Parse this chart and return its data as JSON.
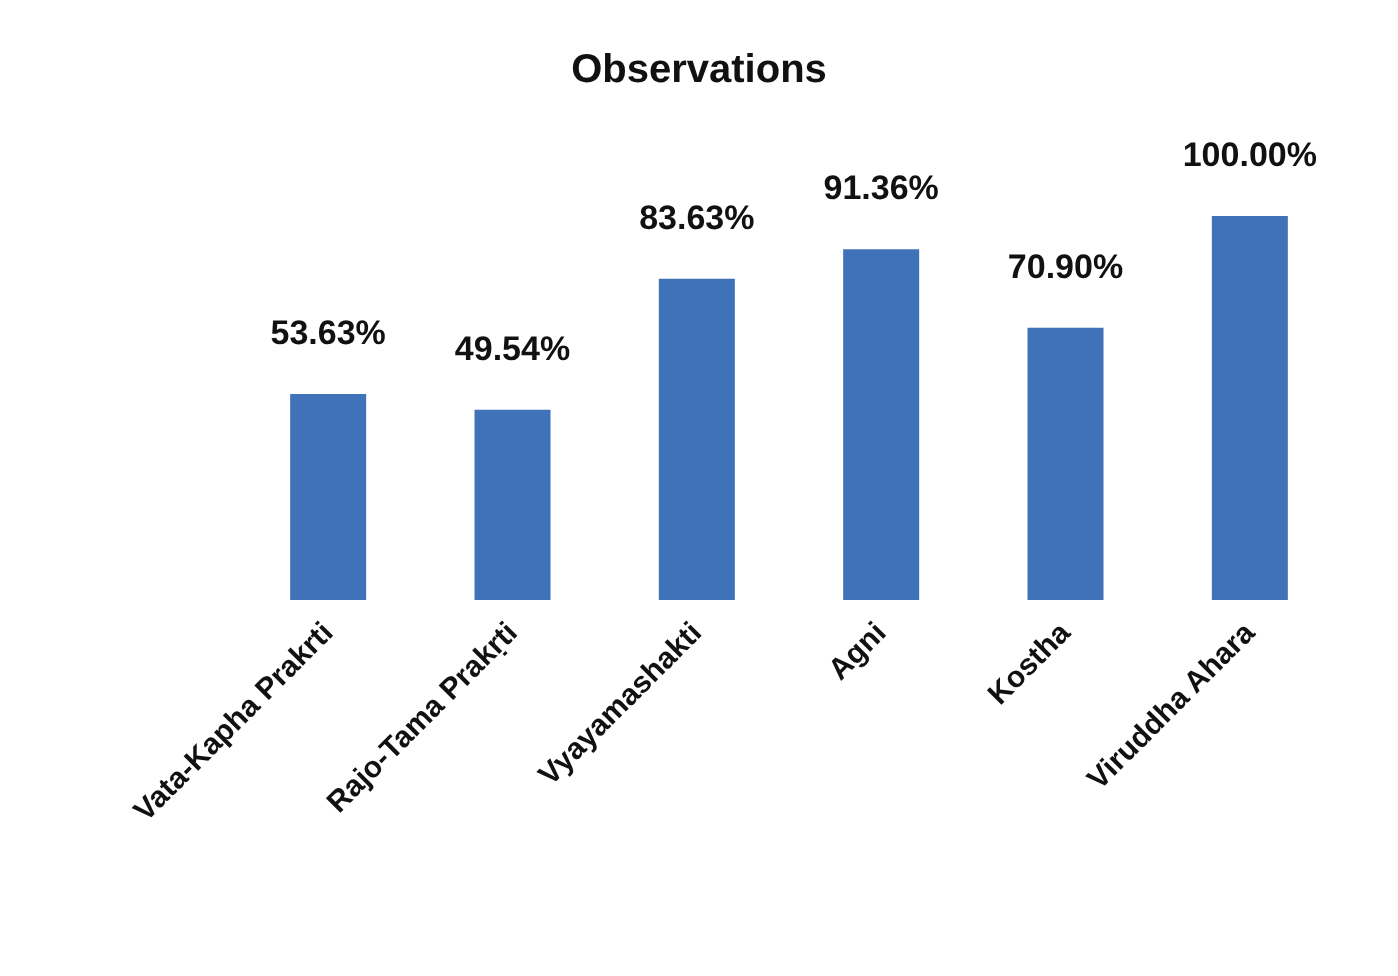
{
  "chart_data": {
    "type": "bar",
    "title": "Observations",
    "categories": [
      "Vata-Kapha Prakrti",
      "Rajo-Tama Prakṛti",
      "Vyayamashakti",
      "Agni",
      "Kostha",
      "Viruddha Ahara"
    ],
    "values": [
      53.63,
      49.54,
      83.63,
      91.36,
      70.9,
      100.0
    ],
    "value_labels": [
      "53.63%",
      "49.54%",
      "83.63%",
      "91.36%",
      "70.90%",
      "100.00%"
    ],
    "color": "#3f72b9"
  }
}
